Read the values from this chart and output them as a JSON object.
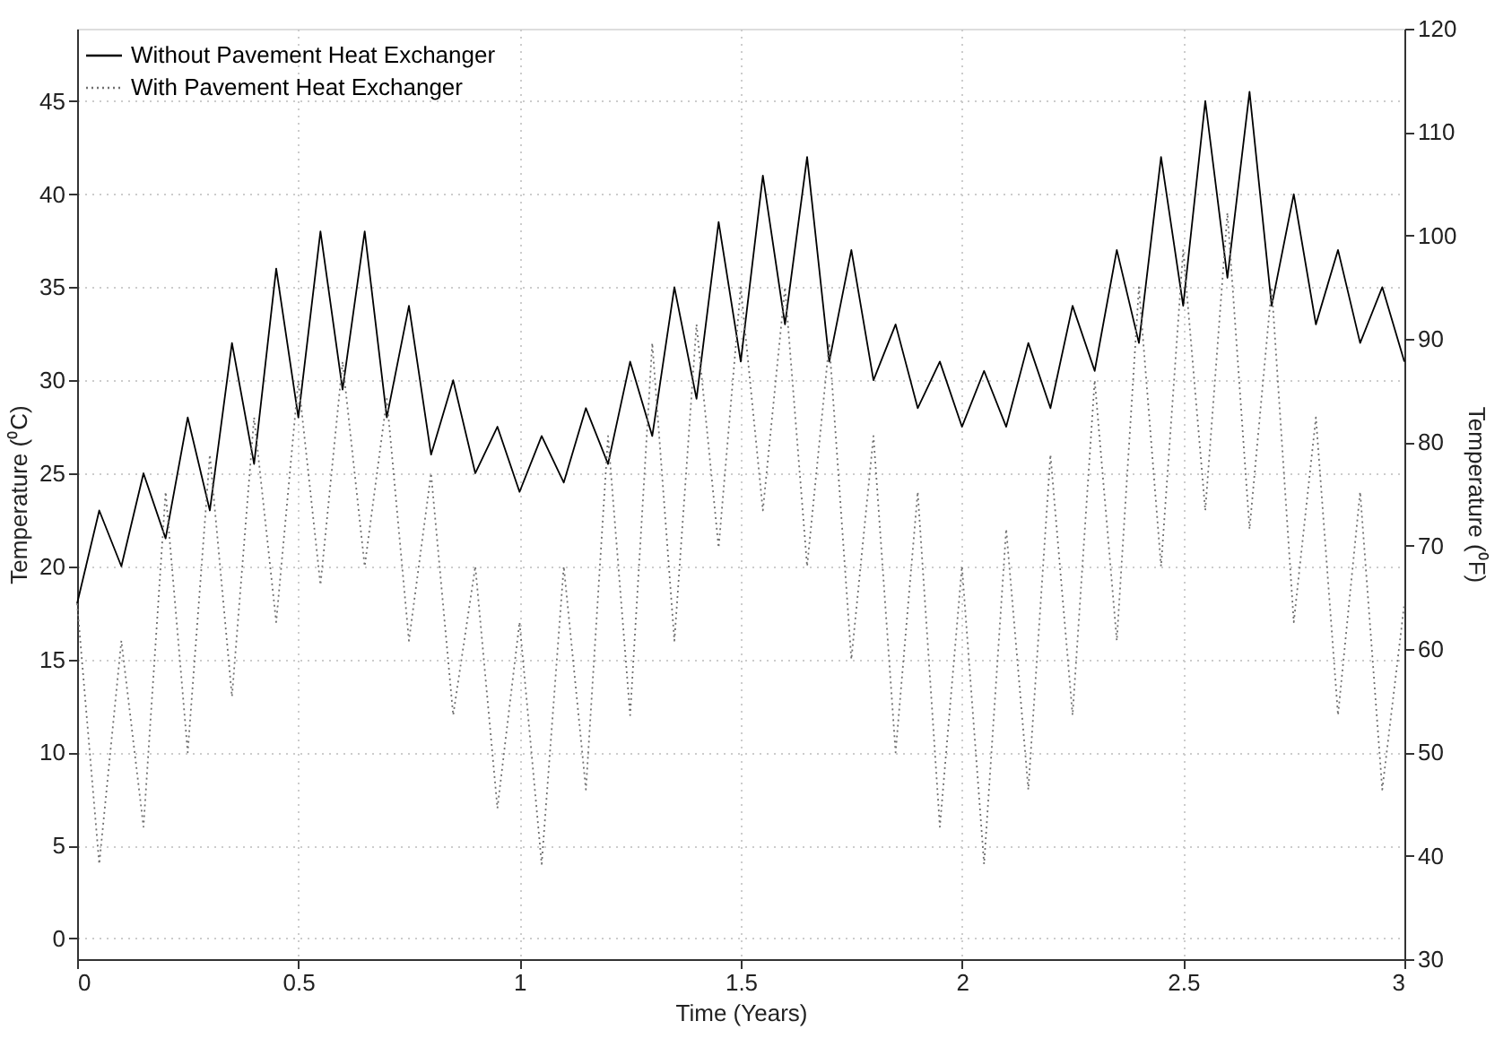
{
  "chart_data": {
    "type": "line",
    "xlabel": "Time (Years)",
    "ylabel": "Temperature (⁰C)",
    "y2label": "Temperature (⁰F)",
    "x": [
      0,
      0.05,
      0.1,
      0.15,
      0.2,
      0.25,
      0.3,
      0.35,
      0.4,
      0.45,
      0.5,
      0.55,
      0.6,
      0.65,
      0.7,
      0.75,
      0.8,
      0.85,
      0.9,
      0.95,
      1.0,
      1.05,
      1.1,
      1.15,
      1.2,
      1.25,
      1.3,
      1.35,
      1.4,
      1.45,
      1.5,
      1.55,
      1.6,
      1.65,
      1.7,
      1.75,
      1.8,
      1.85,
      1.9,
      1.95,
      2.0,
      2.05,
      2.1,
      2.15,
      2.2,
      2.25,
      2.3,
      2.35,
      2.4,
      2.45,
      2.5,
      2.55,
      2.6,
      2.65,
      2.7,
      2.75,
      2.8,
      2.85,
      2.9,
      2.95,
      3.0
    ],
    "series": [
      {
        "name": "Without Pavement Heat Exchanger",
        "color": "#000000",
        "line_style": "solid",
        "values": [
          18,
          23,
          20,
          25,
          21.5,
          28,
          23,
          32,
          25.5,
          36,
          28,
          38,
          29.5,
          38,
          28,
          34,
          26,
          30,
          25,
          27.5,
          24,
          27,
          24.5,
          28.5,
          25.5,
          31,
          27,
          35,
          29,
          38.5,
          31,
          41,
          33,
          42,
          31,
          37,
          30,
          33,
          28.5,
          31,
          27.5,
          30.5,
          27.5,
          32,
          28.5,
          34,
          30.5,
          37,
          32,
          42,
          34,
          45,
          35.5,
          45.5,
          34,
          40,
          33,
          37,
          32,
          35,
          31
        ]
      },
      {
        "name": "With Pavement Heat Exchanger",
        "color": "#707070",
        "line_style": "dotted",
        "values": [
          18,
          4,
          16,
          6,
          24,
          10,
          26,
          13,
          28,
          17,
          30,
          19,
          31,
          20,
          29,
          16,
          25,
          12,
          20,
          7,
          17,
          4,
          20,
          8,
          27,
          12,
          32,
          16,
          33,
          21,
          35,
          23,
          35,
          20,
          32,
          15,
          27,
          10,
          24,
          6,
          20,
          4,
          22,
          8,
          26,
          12,
          30,
          16,
          35,
          20,
          37,
          23,
          39,
          22,
          35,
          17,
          28,
          12,
          24,
          8,
          18
        ]
      }
    ],
    "xlim": [
      0,
      3
    ],
    "xticks": [
      0,
      0.5,
      1,
      1.5,
      2,
      2.5,
      3
    ],
    "ylim": [
      -1.11,
      48.89
    ],
    "yticks": [
      0,
      5,
      10,
      15,
      20,
      25,
      30,
      35,
      40,
      45
    ],
    "y2lim": [
      30,
      120
    ],
    "y2ticks": [
      30,
      40,
      50,
      60,
      70,
      80,
      90,
      100,
      110,
      120
    ],
    "grid": true,
    "legend": "top left"
  }
}
